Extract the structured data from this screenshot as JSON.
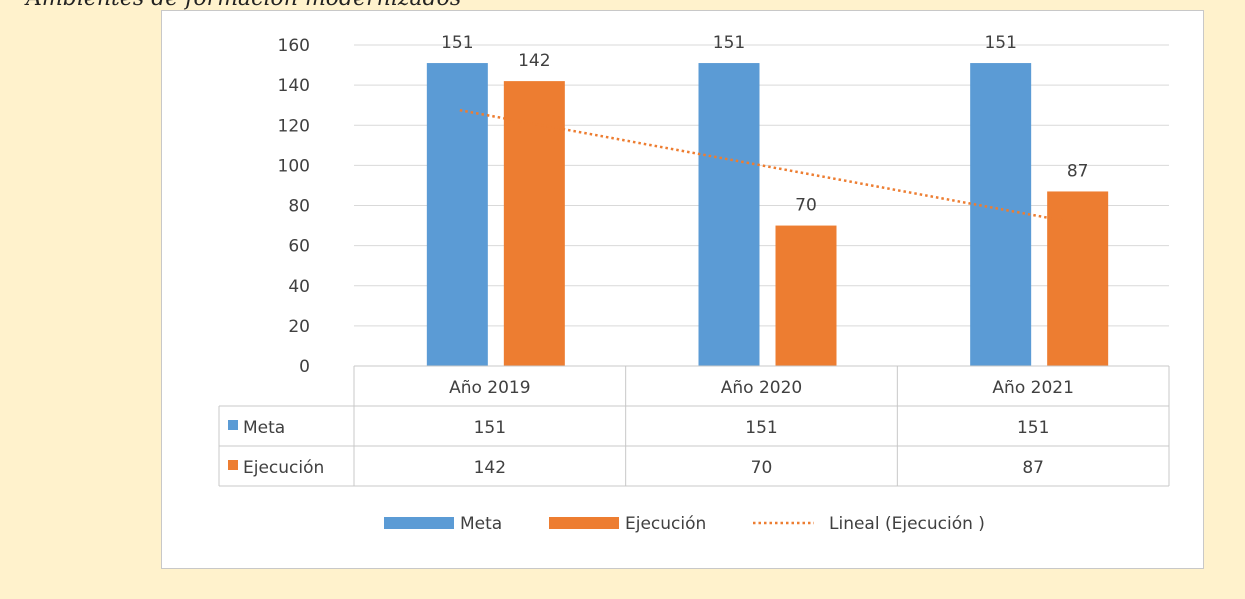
{
  "caption": "Ambientes de formación modernizados",
  "chart_data": {
    "type": "bar",
    "categories": [
      "Año 2019",
      "Año 2020",
      "Año 2021"
    ],
    "series": [
      {
        "name": "Meta",
        "values": [
          151,
          151,
          151
        ],
        "color": "#5b9bd5"
      },
      {
        "name": "Ejecución",
        "values": [
          142,
          70,
          87
        ],
        "color": "#ed7d31"
      }
    ],
    "trendline": {
      "name": "Lineal  (Ejecución )",
      "series": "Ejecución",
      "type": "linear",
      "color": "#ed7d31",
      "start": 127.5,
      "end": 72.5
    },
    "ylim": [
      0,
      160
    ],
    "yticks": [
      0,
      20,
      40,
      60,
      80,
      100,
      120,
      140,
      160
    ],
    "grid": true,
    "data_table": true,
    "legend_position": "bottom"
  }
}
